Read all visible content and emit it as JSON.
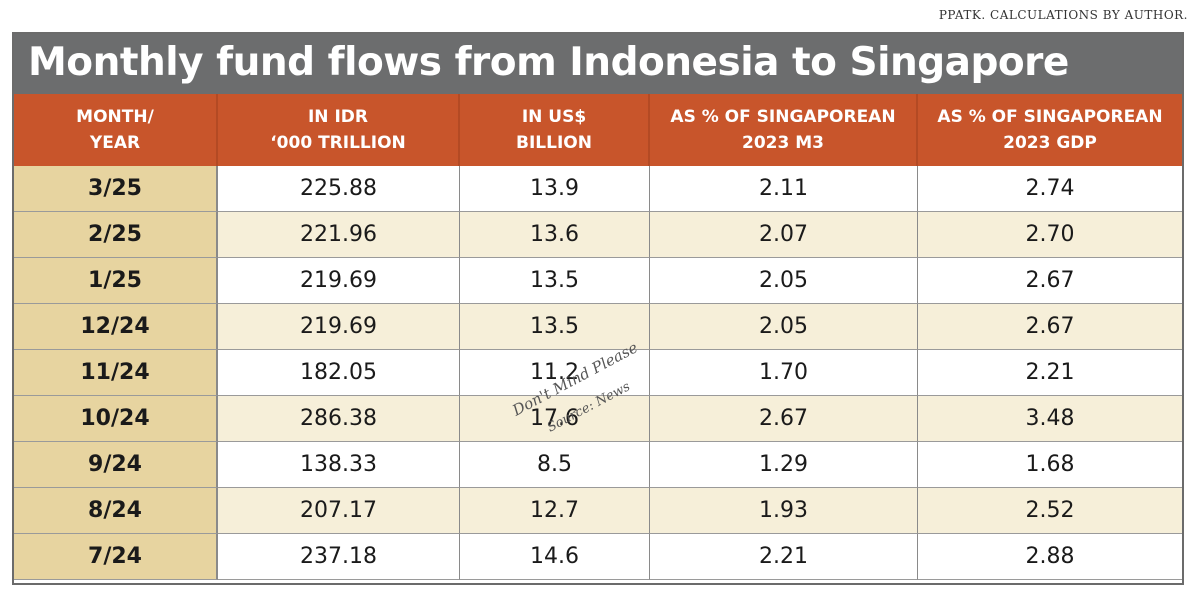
{
  "source_note": "PPATK. CALCULATIONS BY AUTHOR.",
  "chart_data": {
    "type": "table",
    "title": "Monthly fund flows from Indonesia to Singapore",
    "columns": [
      [
        "MONTH/",
        "YEAR"
      ],
      [
        "IN IDR",
        "‘000 TRILLION"
      ],
      [
        "IN US$",
        "BILLION"
      ],
      [
        "AS % OF SINGAPOREAN",
        "2023 M3"
      ],
      [
        "AS % OF SINGAPOREAN",
        "2023 GDP"
      ]
    ],
    "rows": [
      [
        "3/25",
        "225.88",
        "13.9",
        "2.11",
        "2.74"
      ],
      [
        "2/25",
        "221.96",
        "13.6",
        "2.07",
        "2.70"
      ],
      [
        "1/25",
        "219.69",
        "13.5",
        "2.05",
        "2.67"
      ],
      [
        "12/24",
        "219.69",
        "13.5",
        "2.05",
        "2.67"
      ],
      [
        "11/24",
        "182.05",
        "11.2",
        "1.70",
        "2.21"
      ],
      [
        "10/24",
        "286.38",
        "17.6",
        "2.67",
        "3.48"
      ],
      [
        "9/24",
        "138.33",
        "8.5",
        "1.29",
        "1.68"
      ],
      [
        "8/24",
        "207.17",
        "12.7",
        "1.93",
        "2.52"
      ],
      [
        "7/24",
        "237.18",
        "14.6",
        "2.21",
        "2.88"
      ]
    ]
  },
  "scribble": {
    "lines": [
      "Don't Mind Please",
      "Source: News"
    ],
    "color": "#555555"
  }
}
